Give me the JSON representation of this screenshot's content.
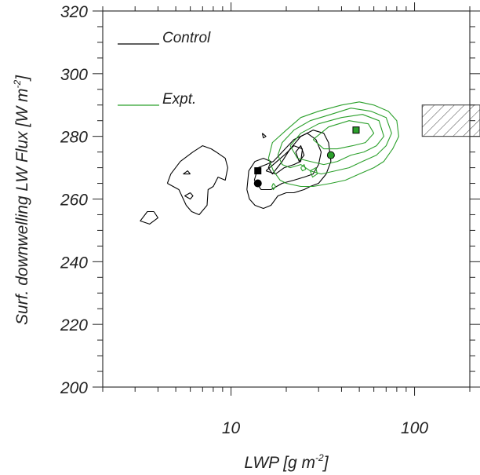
{
  "chart_data": {
    "type": "scatter",
    "xscale": "log",
    "xlim": [
      2,
      200
    ],
    "ylim": [
      200,
      320
    ],
    "xlabel": "LWP [g m",
    "xlabel_sup": "-2",
    "xlabel_tail": "]",
    "ylabel": "Surf. downwelling LW Flux [W m",
    "ylabel_sup": "-2",
    "ylabel_tail": "]",
    "x_tick_labels": [
      "10",
      "100"
    ],
    "x_tick_values": [
      10,
      100
    ],
    "y_tick_values": [
      200,
      220,
      240,
      260,
      280,
      300,
      320
    ],
    "y_tick_labels": [
      "200",
      "220",
      "240",
      "260",
      "280",
      "300",
      "320"
    ],
    "grid": false,
    "legend_position": "top-left",
    "series": [
      {
        "name": "Control",
        "color": "#000000",
        "type": "contour",
        "markers": [
          {
            "shape": "square",
            "x": 14,
            "y": 269
          },
          {
            "shape": "circle",
            "x": 14,
            "y": 265
          }
        ],
        "contours": [
          [
            [
              3.8,
              256
            ],
            [
              4,
              254
            ],
            [
              3.6,
              252
            ],
            [
              3.2,
              253
            ],
            [
              3.5,
              256
            ],
            [
              3.8,
              256
            ]
          ],
          [
            [
              4.5,
              265
            ],
            [
              4.7,
              268
            ],
            [
              5.3,
              272
            ],
            [
              6.2,
              275
            ],
            [
              7,
              277
            ],
            [
              7.8,
              276
            ],
            [
              8.3,
              275
            ],
            [
              9.3,
              273
            ],
            [
              9.6,
              270
            ],
            [
              9.3,
              266
            ],
            [
              8.5,
              267
            ],
            [
              8,
              264
            ],
            [
              7.5,
              263
            ],
            [
              7.4,
              258
            ],
            [
              6.7,
              255
            ],
            [
              6.1,
              256
            ],
            [
              5.7,
              258
            ],
            [
              5.2,
              263
            ],
            [
              4.5,
              265
            ]
          ],
          [
            [
              12.2,
              263
            ],
            [
              12.5,
              269
            ],
            [
              13.5,
              272
            ],
            [
              15,
              273
            ],
            [
              16.5,
              272
            ],
            [
              16,
              270
            ],
            [
              16.8,
              268
            ],
            [
              19,
              272
            ],
            [
              21,
              276
            ],
            [
              24,
              280
            ],
            [
              28,
              282
            ],
            [
              32,
              281
            ],
            [
              34,
              278
            ],
            [
              35,
              272
            ],
            [
              33,
              268
            ],
            [
              30,
              265
            ],
            [
              27,
              264
            ],
            [
              25,
              263
            ],
            [
              22,
              262
            ],
            [
              20,
              262
            ],
            [
              18,
              261
            ],
            [
              16.5,
              258
            ],
            [
              15,
              257
            ],
            [
              13.5,
              258
            ],
            [
              12.6,
              260
            ],
            [
              12.2,
              263
            ]
          ],
          [
            [
              13.4,
              266
            ],
            [
              14,
              270
            ],
            [
              15.5,
              271
            ],
            [
              17,
              272
            ],
            [
              19,
              275
            ],
            [
              22,
              279
            ],
            [
              26,
              281
            ],
            [
              29,
              279
            ],
            [
              31,
              275
            ],
            [
              30,
              271
            ],
            [
              28,
              268
            ],
            [
              25,
              267
            ],
            [
              22,
              266
            ],
            [
              19,
              265
            ],
            [
              16.5,
              263
            ],
            [
              14.6,
              263
            ],
            [
              13.4,
              266
            ]
          ],
          [
            [
              15.5,
              269
            ],
            [
              17,
              271
            ],
            [
              19.5,
              274
            ],
            [
              22,
              277
            ],
            [
              24.5,
              276
            ],
            [
              24,
              272
            ],
            [
              22,
              271
            ],
            [
              19.5,
              270
            ],
            [
              17.5,
              268
            ],
            [
              15.5,
              269
            ]
          ],
          [
            [
              22.5,
              275
            ],
            [
              24,
              277
            ],
            [
              25,
              274
            ],
            [
              23.5,
              272
            ],
            [
              22.5,
              275
            ]
          ],
          [
            [
              6,
              268
            ],
            [
              5.8,
              269
            ],
            [
              5.5,
              268
            ],
            [
              6,
              268
            ]
          ],
          [
            [
              6,
              262
            ],
            [
              5.6,
              261
            ],
            [
              6,
              260
            ],
            [
              6.2,
              261
            ],
            [
              6,
              262
            ]
          ],
          [
            [
              14.8,
              281
            ],
            [
              15.5,
              280
            ],
            [
              15,
              279.5
            ],
            [
              14.8,
              281
            ]
          ]
        ]
      },
      {
        "name": "Expt.",
        "color": "#2ca02c",
        "type": "contour",
        "markers": [
          {
            "shape": "square",
            "x": 48,
            "y": 282
          },
          {
            "shape": "circle",
            "x": 35,
            "y": 274
          }
        ],
        "contours": [
          [
            [
              16,
              273
            ],
            [
              16.8,
              278
            ],
            [
              20,
              282
            ],
            [
              24,
              286
            ],
            [
              30,
              288
            ],
            [
              40,
              290
            ],
            [
              50,
              291
            ],
            [
              60,
              290
            ],
            [
              72,
              288
            ],
            [
              80,
              285
            ],
            [
              82,
              280
            ],
            [
              76,
              276
            ],
            [
              68,
              272
            ],
            [
              60,
              270
            ],
            [
              50,
              268
            ],
            [
              42,
              266
            ],
            [
              35,
              265
            ],
            [
              28,
              264
            ],
            [
              24,
              264
            ],
            [
              20,
              265
            ],
            [
              18.5,
              266
            ],
            [
              17,
              269
            ],
            [
              16,
              273
            ]
          ],
          [
            [
              18,
              274
            ],
            [
              19,
              278
            ],
            [
              22,
              282
            ],
            [
              27,
              285
            ],
            [
              35,
              287
            ],
            [
              45,
              289
            ],
            [
              58,
              288
            ],
            [
              70,
              286
            ],
            [
              75,
              281
            ],
            [
              70,
              277
            ],
            [
              62,
              274
            ],
            [
              52,
              272
            ],
            [
              44,
              270
            ],
            [
              37,
              269
            ],
            [
              31,
              268
            ],
            [
              27,
              269
            ],
            [
              24,
              271
            ],
            [
              21,
              270
            ],
            [
              19,
              271
            ],
            [
              18,
              274
            ]
          ],
          [
            [
              21,
              277
            ],
            [
              24,
              281
            ],
            [
              30,
              284
            ],
            [
              40,
              286
            ],
            [
              52,
              287
            ],
            [
              64,
              285
            ],
            [
              68,
              280
            ],
            [
              62,
              277
            ],
            [
              53,
              275
            ],
            [
              45,
              274
            ],
            [
              38,
              272
            ],
            [
              32,
              271
            ],
            [
              27,
              272
            ],
            [
              23,
              273
            ],
            [
              21,
              277
            ]
          ],
          [
            [
              28,
              279
            ],
            [
              34,
              283
            ],
            [
              44,
              285
            ],
            [
              56,
              284
            ],
            [
              60,
              281
            ],
            [
              54,
              278
            ],
            [
              46,
              277
            ],
            [
              38,
              276
            ],
            [
              32,
              276
            ],
            [
              28,
              279
            ]
          ],
          [
            [
              17,
              265
            ],
            [
              17.5,
              264
            ],
            [
              17,
              263
            ],
            [
              16.7,
              264
            ],
            [
              17,
              265
            ]
          ],
          [
            [
              27,
              269
            ],
            [
              29,
              270
            ],
            [
              29.5,
              268
            ],
            [
              27.8,
              267
            ],
            [
              27,
              269
            ]
          ],
          [
            [
              24,
              270
            ],
            [
              25,
              271
            ],
            [
              25.5,
              269.5
            ],
            [
              24.5,
              269
            ],
            [
              24,
              270
            ]
          ]
        ]
      }
    ],
    "reference_box": {
      "x": [
        110,
        200
      ],
      "y": [
        280,
        290
      ],
      "pattern": "hatched"
    }
  }
}
